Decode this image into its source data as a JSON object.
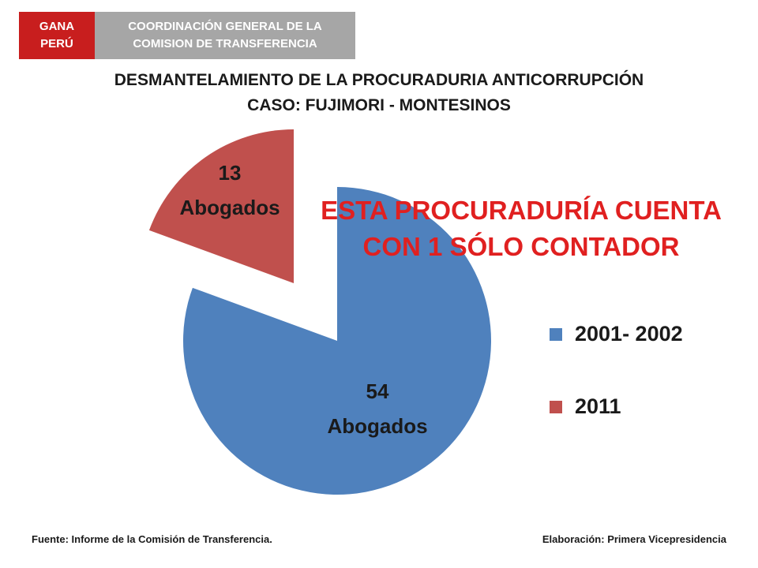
{
  "header": {
    "badge_line1": "GANA",
    "badge_line2": "PERÚ",
    "org_line1": "COORDINACIÓN GENERAL DE LA",
    "org_line2": "COMISION DE TRANSFERENCIA"
  },
  "title": {
    "line1": "DESMANTELAMIENTO DE LA PROCURADURIA ANTICORRUPCIÓN",
    "line2": "CASO: FUJIMORI - MONTESINOS"
  },
  "note": {
    "line1": "ESTA PROCURADURÍA CUENTA",
    "line2": "CON 1 SÓLO CONTADOR"
  },
  "chart_data": {
    "type": "pie",
    "categories": [
      "2001- 2002",
      "2011"
    ],
    "values": [
      54,
      13
    ],
    "data_labels": [
      {
        "count": "54",
        "unit": "Abogados"
      },
      {
        "count": "13",
        "unit": "Abogados"
      }
    ],
    "colors": [
      "#4f81bd",
      "#c0504d"
    ],
    "legend_position": "right",
    "exploded_slice": "2011"
  },
  "footer": {
    "source": "Fuente: Informe de la Comisión de Transferencia.",
    "credit": "Elaboración: Primera Vicepresidencia"
  }
}
